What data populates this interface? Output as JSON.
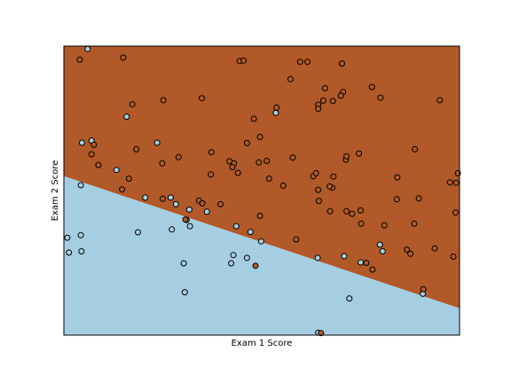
{
  "chart_data": {
    "type": "scatter",
    "title": "",
    "xlabel": "Exam 1 Score",
    "ylabel": "Exam 2 Score",
    "xlim": [
      30,
      100
    ],
    "ylim": [
      30,
      100
    ],
    "ticks_shown": false,
    "grid": false,
    "legend": "none",
    "decision_boundary": {
      "x": [
        30,
        100
      ],
      "y": [
        68.5,
        36.5
      ],
      "class_colors": {
        "below": "#a6cee3",
        "above": "#b15928"
      }
    },
    "marker_style": {
      "edge": "#000000",
      "fill": "class color"
    },
    "series": [
      {
        "class": "below",
        "color": "#a6cee3",
        "points": [
          [
            34.2,
            99.3
          ],
          [
            46.5,
            76.6
          ],
          [
            34.9,
            77.1
          ],
          [
            30.6,
            53.6
          ],
          [
            30.9,
            50.0
          ],
          [
            33.0,
            54.2
          ],
          [
            33.1,
            50.3
          ],
          [
            33.0,
            66.3
          ],
          [
            44.4,
            63.3
          ],
          [
            39.3,
            70.0
          ],
          [
            48.9,
            63.3
          ],
          [
            52.2,
            60.4
          ],
          [
            52.3,
            56.4
          ],
          [
            51.2,
            47.4
          ],
          [
            51.4,
            40.4
          ],
          [
            55.3,
            59.9
          ],
          [
            43.1,
            54.9
          ],
          [
            49.1,
            55.6
          ],
          [
            51.7,
            57.9
          ],
          [
            63.0,
            55.0
          ],
          [
            60.0,
            49.4
          ],
          [
            59.6,
            47.4
          ],
          [
            64.9,
            52.7
          ],
          [
            67.5,
            83.8
          ],
          [
            62.4,
            48.7
          ],
          [
            74.9,
            48.7
          ],
          [
            75.0,
            30.6
          ],
          [
            79.6,
            49.1
          ],
          [
            80.5,
            38.9
          ],
          [
            82.5,
            47.6
          ],
          [
            85.9,
            51.9
          ],
          [
            86.4,
            50.3
          ],
          [
            93.5,
            40.0
          ],
          [
            49.8,
            61.7
          ],
          [
            33.2,
            76.6
          ],
          [
            41.1,
            82.9
          ],
          [
            60.5,
            56.4
          ]
        ]
      },
      {
        "class": "above",
        "color": "#b15928",
        "points": [
          [
            32.8,
            96.7
          ],
          [
            40.5,
            97.2
          ],
          [
            42.1,
            85.9
          ],
          [
            47.6,
            86.9
          ],
          [
            54.4,
            87.4
          ],
          [
            61.1,
            96.4
          ],
          [
            61.8,
            96.5
          ],
          [
            63.6,
            82.4
          ],
          [
            67.6,
            85.1
          ],
          [
            71.8,
            96.2
          ],
          [
            70.1,
            92.0
          ],
          [
            73.1,
            96.2
          ],
          [
            79.2,
            95.8
          ],
          [
            77.6,
            86.7
          ],
          [
            76.2,
            89.8
          ],
          [
            75.0,
            85.8
          ],
          [
            75.0,
            84.8
          ],
          [
            84.5,
            90.1
          ],
          [
            79.4,
            88.9
          ],
          [
            79.0,
            88.0
          ],
          [
            75.9,
            86.8
          ],
          [
            86.0,
            87.5
          ],
          [
            96.5,
            86.9
          ],
          [
            35.3,
            76.1
          ],
          [
            34.9,
            73.8
          ],
          [
            36.1,
            71.2
          ],
          [
            42.8,
            75.0
          ],
          [
            50.3,
            73.1
          ],
          [
            56.1,
            74.3
          ],
          [
            59.3,
            72.1
          ],
          [
            60.1,
            71.6
          ],
          [
            60.8,
            69.3
          ],
          [
            64.5,
            71.8
          ],
          [
            64.7,
            78.0
          ],
          [
            70.5,
            73.0
          ],
          [
            74.1,
            68.5
          ],
          [
            77.5,
            65.7
          ],
          [
            77.7,
            68.4
          ],
          [
            79.9,
            72.5
          ],
          [
            80.0,
            73.3
          ],
          [
            82.2,
            74.0
          ],
          [
            89.0,
            68.2
          ],
          [
            92.1,
            75.0
          ],
          [
            98.3,
            67.0
          ],
          [
            99.4,
            66.9
          ],
          [
            92.8,
            63.1
          ],
          [
            88.9,
            62.9
          ],
          [
            99.7,
            69.2
          ],
          [
            99.3,
            59.7
          ],
          [
            59.8,
            70.7
          ],
          [
            57.7,
            61.7
          ],
          [
            53.9,
            62.6
          ],
          [
            54.5,
            61.9
          ],
          [
            64.7,
            58.9
          ],
          [
            63.9,
            46.8
          ],
          [
            75.5,
            30.5
          ],
          [
            83.5,
            47.5
          ],
          [
            71.1,
            53.2
          ],
          [
            93.6,
            41.1
          ],
          [
            80.0,
            60.0
          ],
          [
            81.0,
            59.4
          ],
          [
            86.7,
            56.6
          ],
          [
            82.5,
            60.2
          ],
          [
            82.6,
            57.0
          ],
          [
            47.5,
            63.0
          ],
          [
            62.4,
            76.5
          ],
          [
            66.3,
            67.9
          ],
          [
            68.8,
            66.2
          ],
          [
            65.9,
            72.2
          ],
          [
            74.6,
            69.2
          ],
          [
            75.0,
            65.2
          ],
          [
            77.0,
            66.0
          ],
          [
            75.1,
            62.5
          ],
          [
            77.1,
            60.0
          ],
          [
            84.6,
            45.9
          ],
          [
            90.7,
            50.7
          ],
          [
            91.3,
            49.7
          ],
          [
            92.0,
            57.0
          ],
          [
            95.6,
            51.0
          ],
          [
            98.9,
            49.0
          ],
          [
            40.3,
            65.3
          ],
          [
            51.5,
            58.0
          ],
          [
            41.5,
            67.9
          ],
          [
            47.4,
            71.6
          ],
          [
            56.0,
            68.9
          ]
        ]
      }
    ]
  }
}
